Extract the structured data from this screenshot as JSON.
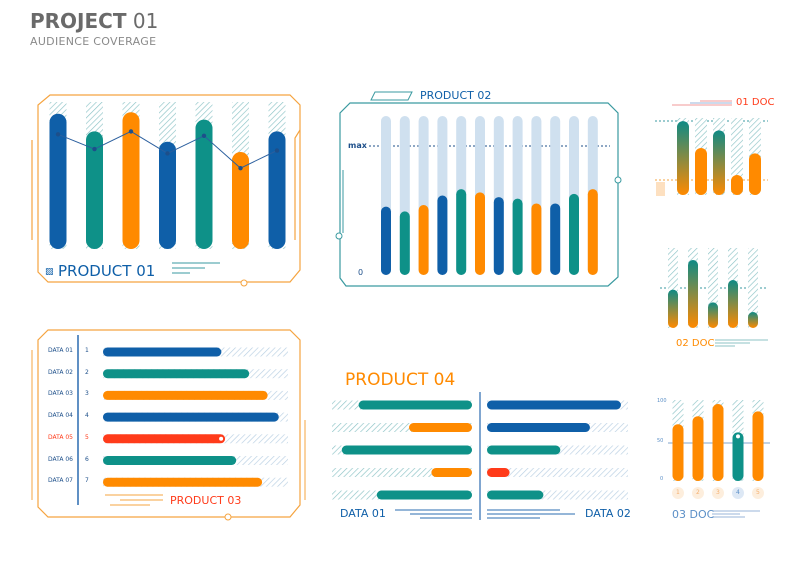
{
  "header": {
    "title_bold": "PROJECT",
    "title_num": "01",
    "subtitle": "AUDIENCE COVERAGE"
  },
  "colors": {
    "blue": "#0f5fa8",
    "teal": "#0e9188",
    "orange": "#ff8a00",
    "red": "#ff3b1a",
    "track": "#cfe0ef",
    "frame_orange": "#f5a440",
    "frame_teal": "#3a9aa0"
  },
  "product01": {
    "label": "PRODUCT 01",
    "bars": [
      {
        "value": 92,
        "color": "blue"
      },
      {
        "value": 80,
        "color": "teal"
      },
      {
        "value": 93,
        "color": "orange"
      },
      {
        "value": 73,
        "color": "blue"
      },
      {
        "value": 88,
        "color": "teal"
      },
      {
        "value": 66,
        "color": "orange"
      },
      {
        "value": 80,
        "color": "blue"
      }
    ],
    "line": [
      78,
      68,
      80,
      65,
      77,
      55,
      67
    ]
  },
  "product02": {
    "label": "PRODUCT 02",
    "max_label": "max",
    "zero_label": "0",
    "bars": [
      {
        "value": 43,
        "color": "blue"
      },
      {
        "value": 40,
        "color": "teal"
      },
      {
        "value": 44,
        "color": "orange"
      },
      {
        "value": 50,
        "color": "blue"
      },
      {
        "value": 54,
        "color": "teal"
      },
      {
        "value": 52,
        "color": "orange"
      },
      {
        "value": 49,
        "color": "blue"
      },
      {
        "value": 48,
        "color": "teal"
      },
      {
        "value": 45,
        "color": "orange"
      },
      {
        "value": 45,
        "color": "blue"
      },
      {
        "value": 51,
        "color": "teal"
      },
      {
        "value": 54,
        "color": "orange"
      }
    ]
  },
  "product03": {
    "label": "PRODUCT 03",
    "rows": [
      {
        "label": "DATA 01",
        "num": "1",
        "value": 64,
        "color": "blue"
      },
      {
        "label": "DATA 02",
        "num": "2",
        "value": 79,
        "color": "teal"
      },
      {
        "label": "DATA 03",
        "num": "3",
        "value": 89,
        "color": "orange"
      },
      {
        "label": "DATA 04",
        "num": "4",
        "value": 95,
        "color": "blue"
      },
      {
        "label": "DATA 05",
        "num": "5",
        "value": 66,
        "color": "red",
        "highlight": true
      },
      {
        "label": "DATA 06",
        "num": "6",
        "value": 72,
        "color": "teal"
      },
      {
        "label": "DATA 07",
        "num": "7",
        "value": 86,
        "color": "orange"
      }
    ]
  },
  "product04": {
    "label": "PRODUCT 04",
    "left_label": "DATA 01",
    "right_label": "DATA 02",
    "left": [
      {
        "value": 81,
        "color": "teal"
      },
      {
        "value": 45,
        "color": "orange"
      },
      {
        "value": 93,
        "color": "teal"
      },
      {
        "value": 29,
        "color": "orange"
      },
      {
        "value": 68,
        "color": "teal"
      }
    ],
    "right": [
      {
        "value": 95,
        "color": "blue"
      },
      {
        "value": 73,
        "color": "blue"
      },
      {
        "value": 52,
        "color": "teal"
      },
      {
        "value": 16,
        "color": "red"
      },
      {
        "value": 40,
        "color": "teal"
      }
    ]
  },
  "doc01": {
    "label": "01 DOC",
    "bars": [
      {
        "value": 96,
        "grad": true
      },
      {
        "value": 61,
        "grad": false
      },
      {
        "value": 84,
        "grad": true
      },
      {
        "value": 26,
        "grad": false
      },
      {
        "value": 54,
        "grad": false
      }
    ]
  },
  "doc02": {
    "label": "02 DOC",
    "bars": [
      {
        "value": 48
      },
      {
        "value": 85
      },
      {
        "value": 32
      },
      {
        "value": 60
      },
      {
        "value": 20
      }
    ]
  },
  "doc03": {
    "label": "03 DOC",
    "axis": [
      "100",
      "50",
      "0"
    ],
    "bars": [
      {
        "num": "1",
        "value": 70,
        "color": "orange"
      },
      {
        "num": "2",
        "value": 80,
        "color": "orange"
      },
      {
        "num": "3",
        "value": 95,
        "color": "orange"
      },
      {
        "num": "4",
        "value": 60,
        "color": "teal",
        "highlight": true
      },
      {
        "num": "5",
        "value": 86,
        "color": "orange"
      }
    ]
  }
}
